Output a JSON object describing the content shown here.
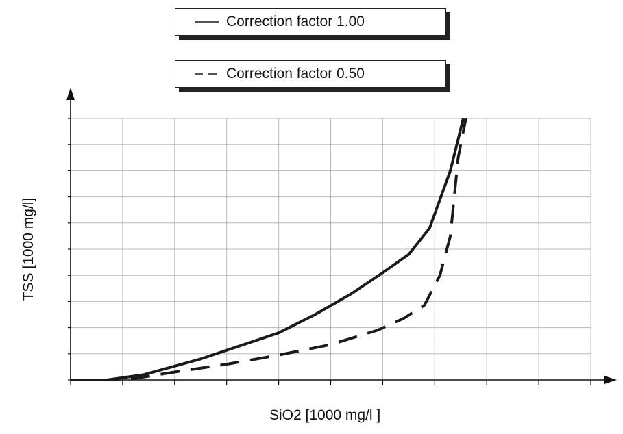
{
  "chart_data": {
    "type": "line",
    "title": "",
    "xlabel": "SiO2 [1000 mg/l ]",
    "ylabel": "TSS [1000 mg/l]",
    "xlim": [
      0,
      10
    ],
    "ylim": [
      0,
      10
    ],
    "grid": true,
    "legend_placement": "top-center",
    "series": [
      {
        "name": "Correction factor 1.00",
        "style": "solid",
        "color": "#1a1a1a",
        "x": [
          0,
          0.7,
          1.4,
          2.5,
          3.4,
          4.0,
          4.7,
          5.4,
          6.0,
          6.5,
          6.9,
          7.3,
          7.55
        ],
        "y": [
          0,
          0,
          0.2,
          0.8,
          1.4,
          1.8,
          2.5,
          3.3,
          4.1,
          4.8,
          5.8,
          8.0,
          10.0
        ]
      },
      {
        "name": "Correction factor 0.50",
        "style": "dashed",
        "color": "#1a1a1a",
        "x": [
          0,
          0.7,
          1.2,
          2.0,
          3.0,
          4.0,
          5.0,
          5.9,
          6.4,
          6.8,
          7.1,
          7.3,
          7.45,
          7.6
        ],
        "y": [
          0,
          0,
          0.05,
          0.3,
          0.6,
          0.95,
          1.35,
          1.9,
          2.35,
          2.85,
          4.0,
          5.5,
          8.5,
          10.0
        ]
      }
    ]
  },
  "colors": {
    "line": "#1a1a1a",
    "grid": "#b8b8b8",
    "axis": "#111111"
  }
}
